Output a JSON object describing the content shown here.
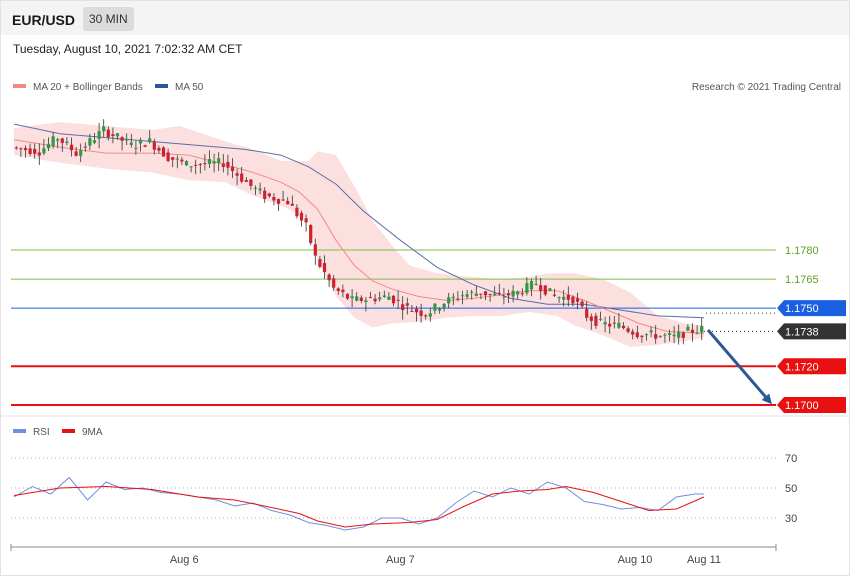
{
  "header": {
    "symbol": "EUR/USD",
    "timeframe": "30 MIN"
  },
  "timestamp": "Tuesday, August 10, 2021 7:02:32 AM CET",
  "legend": {
    "ma20_label": "MA 20 + Bollinger Bands",
    "ma50_label": "MA 50",
    "copyright": "Research © 2021 Trading Central",
    "rsi_label": "RSI",
    "rsi_ma_label": "9MA"
  },
  "colors": {
    "bull": "#2f9a43",
    "bear": "#d0202f",
    "ma20": "#f08a88",
    "bb_fill": "#fbd6d6",
    "ma50": "#5a6ea8",
    "support": "#e81010",
    "resistance": "#7cbf44",
    "pivot": "#1a5fe0",
    "last": "#333333",
    "arrow": "#2d5896",
    "rsi": "#6f8fdf",
    "rsi_ma": "#e81010"
  },
  "chart_data": [
    {
      "type": "candlestick",
      "title": "EUR/USD",
      "timeframe": "30 MIN",
      "ylim": [
        1.1688,
        1.185
      ],
      "x_ticks": [
        "Aug 6",
        "Aug 7",
        "Aug 10",
        "Aug 11"
      ],
      "last_price": 1.1738,
      "levels": [
        {
          "value": 1.178,
          "label": "1.1780",
          "kind": "resistance"
        },
        {
          "value": 1.1765,
          "label": "1.1765",
          "kind": "resistance"
        },
        {
          "value": 1.175,
          "label": "1.1750",
          "kind": "pivot"
        },
        {
          "value": 1.1738,
          "label": "1.1738",
          "kind": "last"
        },
        {
          "value": 1.172,
          "label": "1.1720",
          "kind": "support"
        },
        {
          "value": 1.17,
          "label": "1.1700",
          "kind": "support"
        }
      ],
      "path": [
        [
          0,
          1.1833
        ],
        [
          6,
          1.1831
        ],
        [
          10,
          1.1838
        ],
        [
          14,
          1.183
        ],
        [
          20,
          1.1842
        ],
        [
          26,
          1.1834
        ],
        [
          30,
          1.1836
        ],
        [
          34,
          1.1828
        ],
        [
          38,
          1.1824
        ],
        [
          46,
          1.1825
        ],
        [
          49,
          1.1819
        ],
        [
          52,
          1.1813
        ],
        [
          55,
          1.1808
        ],
        [
          60,
          1.1805
        ],
        [
          64,
          1.1792
        ],
        [
          66,
          1.1776
        ],
        [
          70,
          1.176
        ],
        [
          74,
          1.1754
        ],
        [
          78,
          1.1755
        ],
        [
          82,
          1.1756
        ],
        [
          86,
          1.175
        ],
        [
          90,
          1.1747
        ],
        [
          94,
          1.1753
        ],
        [
          98,
          1.1757
        ],
        [
          102,
          1.1758
        ],
        [
          106,
          1.1756
        ],
        [
          110,
          1.1758
        ],
        [
          114,
          1.1763
        ],
        [
          118,
          1.1756
        ],
        [
          122,
          1.1755
        ],
        [
          125,
          1.1746
        ],
        [
          128,
          1.1742
        ],
        [
          132,
          1.1741
        ],
        [
          136,
          1.1737
        ],
        [
          140,
          1.1736
        ],
        [
          144,
          1.1735
        ],
        [
          147,
          1.1738
        ],
        [
          150,
          1.1739
        ]
      ],
      "series": [
        {
          "name": "MA 20 + Bollinger Bands"
        },
        {
          "name": "MA 50"
        }
      ],
      "ma20": [
        [
          0,
          1.1837
        ],
        [
          10,
          1.1833
        ],
        [
          20,
          1.183
        ],
        [
          30,
          1.183
        ],
        [
          38,
          1.1829
        ],
        [
          46,
          1.1824
        ],
        [
          52,
          1.182
        ],
        [
          58,
          1.1815
        ],
        [
          62,
          1.181
        ],
        [
          66,
          1.1801
        ],
        [
          70,
          1.1785
        ],
        [
          74,
          1.1772
        ],
        [
          78,
          1.1764
        ],
        [
          82,
          1.176
        ],
        [
          88,
          1.1756
        ],
        [
          94,
          1.1754
        ],
        [
          100,
          1.1755
        ],
        [
          106,
          1.1757
        ],
        [
          112,
          1.1759
        ],
        [
          118,
          1.1759
        ],
        [
          124,
          1.1754
        ],
        [
          130,
          1.1748
        ],
        [
          136,
          1.1742
        ],
        [
          142,
          1.1738
        ],
        [
          150,
          1.1737
        ]
      ],
      "bb_upper": [
        [
          0,
          1.1843
        ],
        [
          10,
          1.1846
        ],
        [
          20,
          1.1844
        ],
        [
          30,
          1.1842
        ],
        [
          36,
          1.1844
        ],
        [
          46,
          1.1836
        ],
        [
          52,
          1.1832
        ],
        [
          58,
          1.1826
        ],
        [
          64,
          1.1826
        ],
        [
          66,
          1.1831
        ],
        [
          70,
          1.1829
        ],
        [
          74,
          1.1813
        ],
        [
          78,
          1.1795
        ],
        [
          82,
          1.1783
        ],
        [
          86,
          1.1772
        ],
        [
          92,
          1.1768
        ],
        [
          100,
          1.1766
        ],
        [
          106,
          1.1765
        ],
        [
          112,
          1.1766
        ],
        [
          116,
          1.1768
        ],
        [
          122,
          1.1768
        ],
        [
          128,
          1.1765
        ],
        [
          134,
          1.1758
        ],
        [
          140,
          1.1746
        ],
        [
          146,
          1.1742
        ],
        [
          150,
          1.1741
        ]
      ],
      "bb_lower": [
        [
          0,
          1.1829
        ],
        [
          10,
          1.1825
        ],
        [
          20,
          1.1822
        ],
        [
          30,
          1.182
        ],
        [
          38,
          1.1816
        ],
        [
          46,
          1.1815
        ],
        [
          52,
          1.1808
        ],
        [
          58,
          1.1803
        ],
        [
          64,
          1.1796
        ],
        [
          66,
          1.1775
        ],
        [
          70,
          1.1756
        ],
        [
          74,
          1.1745
        ],
        [
          78,
          1.174
        ],
        [
          82,
          1.1742
        ],
        [
          88,
          1.1743
        ],
        [
          94,
          1.1745
        ],
        [
          100,
          1.1746
        ],
        [
          106,
          1.1746
        ],
        [
          112,
          1.1748
        ],
        [
          118,
          1.1746
        ],
        [
          122,
          1.1741
        ],
        [
          128,
          1.1736
        ],
        [
          134,
          1.173
        ],
        [
          140,
          1.1731
        ],
        [
          146,
          1.1733
        ],
        [
          150,
          1.1735
        ]
      ],
      "ma50": [
        [
          0,
          1.1845
        ],
        [
          10,
          1.184
        ],
        [
          20,
          1.1838
        ],
        [
          30,
          1.1836
        ],
        [
          40,
          1.1834
        ],
        [
          50,
          1.1832
        ],
        [
          58,
          1.1829
        ],
        [
          64,
          1.1823
        ],
        [
          70,
          1.1814
        ],
        [
          76,
          1.18
        ],
        [
          84,
          1.1785
        ],
        [
          92,
          1.1771
        ],
        [
          100,
          1.1762
        ],
        [
          108,
          1.1755
        ],
        [
          116,
          1.1752
        ],
        [
          124,
          1.1752
        ],
        [
          132,
          1.1749
        ],
        [
          140,
          1.1746
        ],
        [
          150,
          1.1745
        ]
      ]
    },
    {
      "type": "line",
      "title": "RSI",
      "ylim": [
        20,
        85
      ],
      "y_ticks": [
        70,
        50,
        30
      ],
      "series": [
        {
          "name": "RSI",
          "points": [
            [
              0,
              44
            ],
            [
              4,
              51
            ],
            [
              8,
              46
            ],
            [
              12,
              57
            ],
            [
              16,
              42
            ],
            [
              20,
              54
            ],
            [
              24,
              49
            ],
            [
              28,
              50
            ],
            [
              32,
              47
            ],
            [
              36,
              46
            ],
            [
              40,
              44
            ],
            [
              44,
              42
            ],
            [
              48,
              38
            ],
            [
              52,
              40
            ],
            [
              56,
              35
            ],
            [
              60,
              32
            ],
            [
              64,
              27
            ],
            [
              68,
              25
            ],
            [
              72,
              22
            ],
            [
              76,
              24
            ],
            [
              80,
              30
            ],
            [
              84,
              30
            ],
            [
              88,
              26
            ],
            [
              92,
              30
            ],
            [
              96,
              40
            ],
            [
              100,
              48
            ],
            [
              104,
              44
            ],
            [
              108,
              50
            ],
            [
              112,
              46
            ],
            [
              116,
              54
            ],
            [
              120,
              50
            ],
            [
              124,
              41
            ],
            [
              128,
              39
            ],
            [
              132,
              36
            ],
            [
              136,
              37
            ],
            [
              140,
              35
            ],
            [
              144,
              44
            ],
            [
              148,
              46
            ],
            [
              150,
              46
            ]
          ]
        },
        {
          "name": "9MA",
          "points": [
            [
              0,
              45
            ],
            [
              10,
              50
            ],
            [
              20,
              51
            ],
            [
              30,
              49
            ],
            [
              40,
              44
            ],
            [
              48,
              42
            ],
            [
              56,
              37
            ],
            [
              62,
              33
            ],
            [
              66,
              28
            ],
            [
              72,
              24
            ],
            [
              78,
              26
            ],
            [
              86,
              27
            ],
            [
              92,
              29
            ],
            [
              98,
              38
            ],
            [
              104,
              46
            ],
            [
              110,
              48
            ],
            [
              116,
              49
            ],
            [
              120,
              51
            ],
            [
              126,
              47
            ],
            [
              132,
              41
            ],
            [
              138,
              35
            ],
            [
              144,
              36
            ],
            [
              150,
              44
            ]
          ]
        }
      ]
    }
  ]
}
